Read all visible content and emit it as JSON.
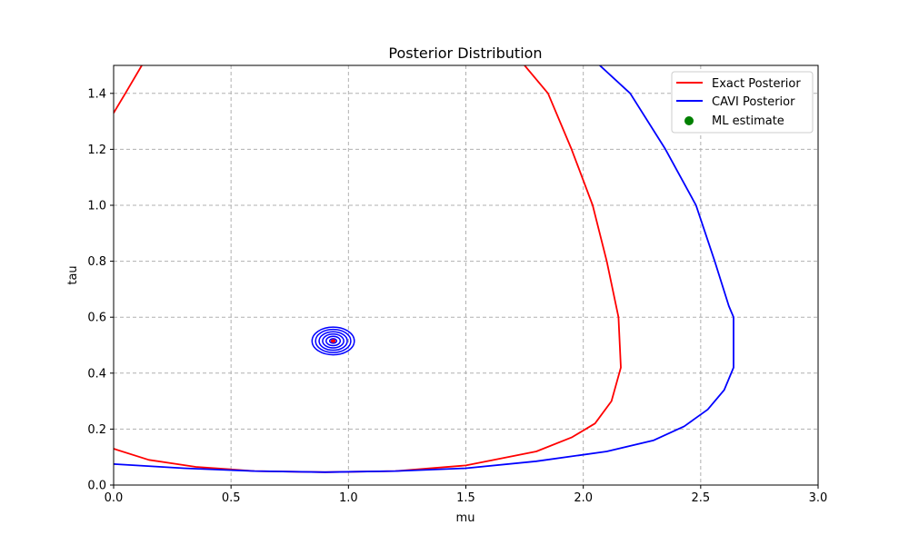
{
  "chart_data": {
    "type": "contour",
    "title": "Posterior Distribution",
    "xlabel": "mu",
    "ylabel": "tau",
    "xlim": [
      0,
      3
    ],
    "ylim": [
      0,
      1.5
    ],
    "xticks": [
      "0.0",
      "0.5",
      "1.0",
      "1.5",
      "2.0",
      "2.5",
      "3.0"
    ],
    "yticks": [
      "0.0",
      "0.2",
      "0.4",
      "0.6",
      "0.8",
      "1.0",
      "1.2",
      "1.4"
    ],
    "grid": true,
    "legend_position": "top-right",
    "legend": [
      {
        "label": "Exact Posterior",
        "kind": "line",
        "color": "#ff0000"
      },
      {
        "label": "CAVI Posterior",
        "kind": "line",
        "color": "#0000ff"
      },
      {
        "label": "ML estimate",
        "kind": "dot",
        "color": "#008000"
      }
    ],
    "series": [
      {
        "name": "Exact Posterior",
        "color": "#ff0000",
        "contours": [
          [
            [
              0.0,
              1.33
            ],
            [
              0.05,
              1.4
            ],
            [
              0.12,
              1.5
            ]
          ],
          [
            [
              1.75,
              1.5
            ],
            [
              1.85,
              1.4
            ],
            [
              1.95,
              1.2
            ],
            [
              2.04,
              1.0
            ],
            [
              2.1,
              0.8
            ],
            [
              2.15,
              0.6
            ],
            [
              2.16,
              0.42
            ],
            [
              2.12,
              0.3
            ],
            [
              2.05,
              0.22
            ],
            [
              1.95,
              0.17
            ],
            [
              1.8,
              0.12
            ],
            [
              1.5,
              0.07
            ],
            [
              1.2,
              0.05
            ],
            [
              0.9,
              0.046
            ],
            [
              0.6,
              0.05
            ],
            [
              0.35,
              0.065
            ],
            [
              0.15,
              0.09
            ],
            [
              0.0,
              0.13
            ]
          ]
        ],
        "center_rings": [
          [
            0.935,
            0.515,
            0.004
          ]
        ]
      },
      {
        "name": "CAVI Posterior",
        "color": "#0000ff",
        "contours": [
          [
            [
              2.07,
              1.5
            ],
            [
              2.2,
              1.4
            ],
            [
              2.35,
              1.2
            ],
            [
              2.48,
              1.0
            ],
            [
              2.56,
              0.8
            ],
            [
              2.62,
              0.64
            ],
            [
              2.64,
              0.6
            ],
            [
              2.64,
              0.42
            ],
            [
              2.6,
              0.34
            ],
            [
              2.53,
              0.27
            ],
            [
              2.43,
              0.21
            ],
            [
              2.3,
              0.16
            ],
            [
              2.1,
              0.12
            ],
            [
              1.8,
              0.085
            ],
            [
              1.5,
              0.06
            ],
            [
              1.2,
              0.05
            ],
            [
              0.9,
              0.046
            ],
            [
              0.6,
              0.05
            ],
            [
              0.3,
              0.06
            ],
            [
              0.0,
              0.075
            ]
          ]
        ],
        "center_rings": [
          [
            0.935,
            0.515,
            0.09
          ],
          [
            0.935,
            0.515,
            0.075
          ],
          [
            0.935,
            0.515,
            0.06
          ],
          [
            0.935,
            0.515,
            0.045
          ],
          [
            0.935,
            0.515,
            0.03
          ],
          [
            0.935,
            0.515,
            0.015
          ]
        ]
      }
    ],
    "points": [
      {
        "name": "ML estimate",
        "x": 0.935,
        "y": 0.515,
        "color": "#008000"
      }
    ]
  }
}
